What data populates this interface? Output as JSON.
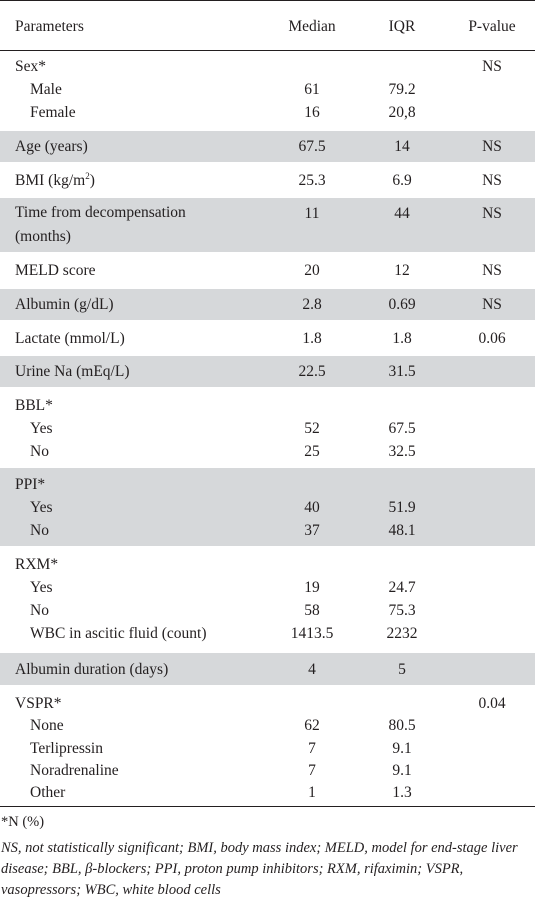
{
  "headers": {
    "parameters": "Parameters",
    "median": "Median",
    "iqr": "IQR",
    "pvalue": "P-value"
  },
  "rows": {
    "sex": {
      "label": "Sex*",
      "pvalue": "NS",
      "male": {
        "label": "Male",
        "median": "61",
        "iqr": "79.2"
      },
      "female": {
        "label": "Female",
        "median": "16",
        "iqr": "20,8"
      }
    },
    "age": {
      "label": "Age (years)",
      "median": "67.5",
      "iqr": "14",
      "pvalue": "NS"
    },
    "bmi": {
      "label": "BMI (kg/m",
      "label_sup": "2",
      "label_end": ")",
      "median": "25.3",
      "iqr": "6.9",
      "pvalue": "NS"
    },
    "time": {
      "label": "Time from decompensation (months)",
      "median": "11",
      "iqr": "44",
      "pvalue": "NS"
    },
    "meld": {
      "label": "MELD score",
      "median": "20",
      "iqr": "12",
      "pvalue": "NS"
    },
    "albumin": {
      "label": "Albumin (g/dL)",
      "median": "2.8",
      "iqr": "0.69",
      "pvalue": "NS"
    },
    "lactate": {
      "label": "Lactate (mmol/L)",
      "median": "1.8",
      "iqr": "1.8",
      "pvalue": "0.06"
    },
    "urine": {
      "label": "Urine Na (mEq/L)",
      "median": "22.5",
      "iqr": "31.5"
    },
    "bbl": {
      "label": "BBL*",
      "yes": {
        "label": "Yes",
        "median": "52",
        "iqr": "67.5"
      },
      "no": {
        "label": "No",
        "median": "25",
        "iqr": "32.5"
      }
    },
    "ppi": {
      "label": "PPI*",
      "yes": {
        "label": "Yes",
        "median": "40",
        "iqr": "51.9"
      },
      "no": {
        "label": "No",
        "median": "37",
        "iqr": "48.1"
      }
    },
    "rxm": {
      "label": "RXM*",
      "yes": {
        "label": "Yes",
        "median": "19",
        "iqr": "24.7"
      },
      "no": {
        "label": "No",
        "median": "58",
        "iqr": "75.3"
      },
      "wbc": {
        "label": "WBC in ascitic fluid (count)",
        "median": "1413.5",
        "iqr": "2232"
      }
    },
    "albdur": {
      "label": "Albumin duration (days)",
      "median": "4",
      "iqr": "5"
    },
    "vspr": {
      "label": "VSPR*",
      "pvalue": "0.04",
      "none": {
        "label": "None",
        "median": "62",
        "iqr": "80.5"
      },
      "terli": {
        "label": "Terlipressin",
        "median": "7",
        "iqr": "9.1"
      },
      "nora": {
        "label": "Noradrenaline",
        "median": "7",
        "iqr": "9.1"
      },
      "other": {
        "label": "Other",
        "median": "1",
        "iqr": "1.3"
      }
    }
  },
  "footnotes": {
    "n_pct": "*N (%)",
    "abbrev": "NS, not statistically significant; BMI, body mass index; MELD, model for end-stage liver disease; BBL, β-blockers; PPI, proton pump inhibitors; RXM, rifaximin; VSPR, vasopressors; WBC, white blood cells"
  }
}
